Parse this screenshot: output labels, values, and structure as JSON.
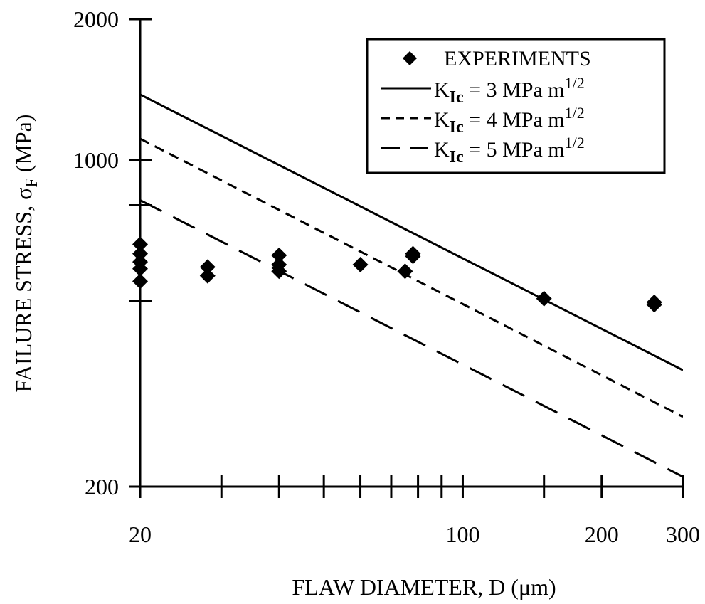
{
  "chart_data": {
    "type": "scatter",
    "title": "",
    "xlabel": "FLAW DIAMETER, D (μm)",
    "ylabel_prefix": "FAILURE STRESS, ",
    "ylabel_symbol": "σ",
    "ylabel_subscript": "F",
    "ylabel_suffix": " (MPa)",
    "x_scale": "log",
    "y_scale": "log",
    "xlim": [
      20,
      300
    ],
    "ylim": [
      200,
      2000
    ],
    "x_tick_labels": [
      {
        "value": 20,
        "label": "20"
      },
      {
        "value": 100,
        "label": "100"
      },
      {
        "value": 200,
        "label": "200"
      },
      {
        "value": 300,
        "label": "300"
      }
    ],
    "x_minor_ticks": [
      30,
      40,
      50,
      60,
      70,
      80,
      90,
      150
    ],
    "y_tick_labels": [
      {
        "value": 200,
        "label": "200"
      },
      {
        "value": 1000,
        "label": "1000"
      },
      {
        "value": 2000,
        "label": "2000"
      }
    ],
    "y_minor_ticks": [
      500,
      800
    ],
    "grid": false,
    "legend_position": "top-right",
    "experiments": {
      "legend_label": "EXPERIMENTS",
      "color": "#000000",
      "marker": "diamond",
      "points": [
        {
          "x": 20,
          "y": 660
        },
        {
          "x": 20,
          "y": 630
        },
        {
          "x": 20,
          "y": 605
        },
        {
          "x": 20,
          "y": 585
        },
        {
          "x": 20,
          "y": 550
        },
        {
          "x": 28,
          "y": 590
        },
        {
          "x": 28,
          "y": 565
        },
        {
          "x": 40,
          "y": 625
        },
        {
          "x": 40,
          "y": 597
        },
        {
          "x": 40,
          "y": 578
        },
        {
          "x": 60,
          "y": 597
        },
        {
          "x": 75,
          "y": 578
        },
        {
          "x": 78,
          "y": 622
        },
        {
          "x": 78,
          "y": 630
        },
        {
          "x": 150,
          "y": 505
        },
        {
          "x": 260,
          "y": 490
        },
        {
          "x": 260,
          "y": 496
        }
      ]
    },
    "series": [
      {
        "name_prefix": "K",
        "name_subscript": "Ic",
        "name_value": "= 3 MPa m",
        "name_superscript": "1/2",
        "style": "solid",
        "color": "#000000",
        "x": [
          20,
          300
        ],
        "y": [
          1380,
          355
        ]
      },
      {
        "name_prefix": "K",
        "name_subscript": "Ic",
        "name_value": "= 4 MPa m",
        "name_superscript": "1/2",
        "style": "short-dash",
        "color": "#000000",
        "x": [
          20,
          300
        ],
        "y": [
          1110,
          282
        ]
      },
      {
        "name_prefix": "K",
        "name_subscript": "Ic",
        "name_value": "= 5 MPa m",
        "name_superscript": "1/2",
        "style": "long-dash",
        "color": "#000000",
        "x": [
          20,
          300
        ],
        "y": [
          820,
          210
        ]
      }
    ]
  }
}
